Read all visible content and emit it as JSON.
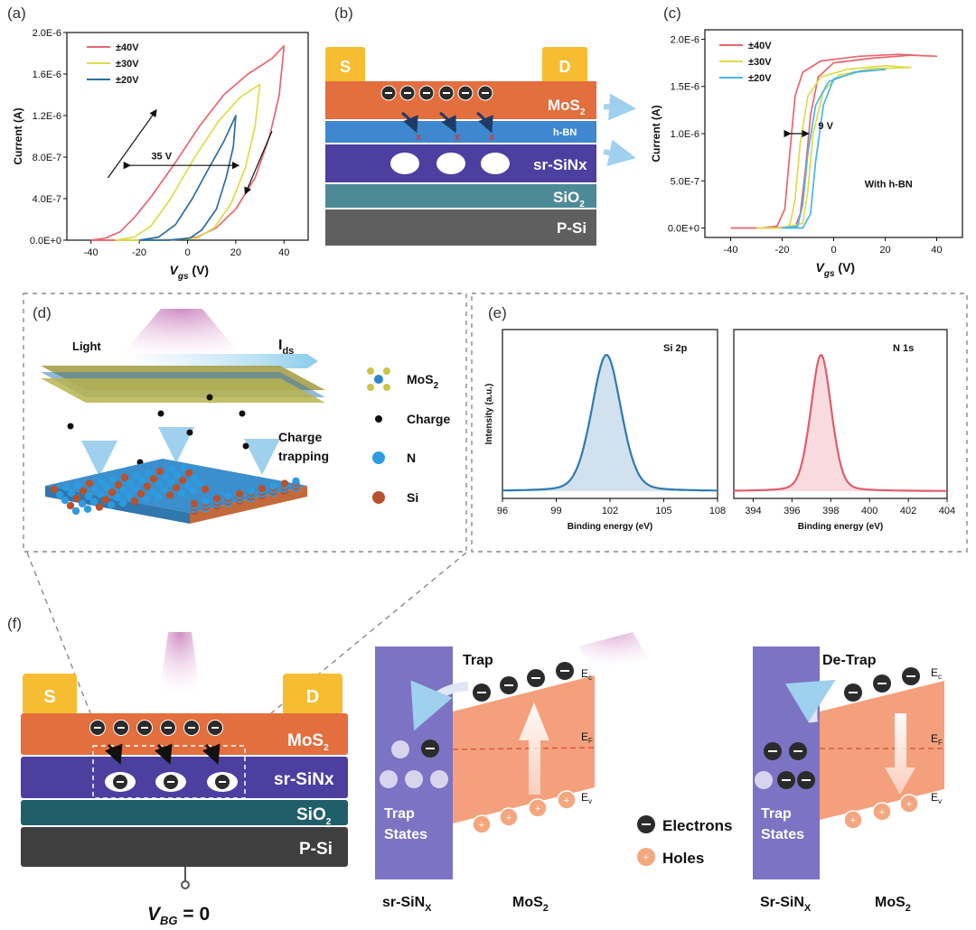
{
  "panels": {
    "a": "(a)",
    "b": "(b)",
    "c": "(c)",
    "d": "(d)",
    "e": "(e)",
    "f": "(f)"
  },
  "colors": {
    "red": "#e8666f",
    "yellow": "#dcdc4a",
    "blue": "#2a6f9e",
    "lightblue": "#49b4ea",
    "mos2": "#e36e3e",
    "hbn": "#3f88d0",
    "sinx": "#4d3fa0",
    "sio2": "#4d8a98",
    "psi": "#5f5f5f",
    "sio2_f": "#1f5f6a",
    "psi_f": "#3f3f3f",
    "contact": "#f6bd33",
    "gaussBlue": "#2f7ab0",
    "gaussRed": "#e05d6c"
  },
  "chart_data": [
    {
      "id": "a",
      "type": "line",
      "ylabel": "Current (A)",
      "xlabel_main": "V",
      "xlabel_sub": "gs",
      "xlabel_unit": " (V)",
      "xlim": [
        -50,
        50
      ],
      "ylim": [
        0,
        2e-06
      ],
      "xticks": [
        -40,
        -20,
        0,
        20,
        40
      ],
      "yticks": [
        0,
        4e-07,
        8e-07,
        1.2e-06,
        1.6e-06,
        2e-06
      ],
      "yticklabels": [
        "0.0E+0",
        "4.0E-7",
        "8.0E-7",
        "1.2E-6",
        "1.6E-6",
        "2.0E-6"
      ],
      "annotation": "35 V",
      "series": [
        {
          "name": "±40V",
          "color": "#e8666f",
          "points": [
            [
              -40,
              0
            ],
            [
              -34,
              2e-08
            ],
            [
              -28,
              8e-08
            ],
            [
              -22,
              2.2e-07
            ],
            [
              -15,
              4.2e-07
            ],
            [
              -5,
              7.5e-07
            ],
            [
              5,
              1.1e-06
            ],
            [
              15,
              1.4e-06
            ],
            [
              25,
              1.6e-06
            ],
            [
              35,
              1.75e-06
            ],
            [
              40,
              1.87e-06
            ],
            [
              38,
              1.4e-06
            ],
            [
              34,
              1e-06
            ],
            [
              28,
              6e-07
            ],
            [
              20,
              3e-07
            ],
            [
              12,
              1.2e-07
            ],
            [
              4,
              3e-08
            ],
            [
              -5,
              5e-09
            ],
            [
              -20,
              0
            ],
            [
              -40,
              0
            ]
          ]
        },
        {
          "name": "±30V",
          "color": "#dcdc4a",
          "points": [
            [
              -30,
              0
            ],
            [
              -22,
              3e-08
            ],
            [
              -15,
              1.4e-07
            ],
            [
              -7,
              4e-07
            ],
            [
              3,
              8e-07
            ],
            [
              13,
              1.15e-06
            ],
            [
              22,
              1.38e-06
            ],
            [
              30,
              1.5e-06
            ],
            [
              28,
              1.1e-06
            ],
            [
              24,
              7e-07
            ],
            [
              18,
              3.5e-07
            ],
            [
              11,
              1.2e-07
            ],
            [
              4,
              2e-08
            ],
            [
              -10,
              0
            ],
            [
              -30,
              0
            ]
          ]
        },
        {
          "name": "±20V",
          "color": "#2a6f9e",
          "points": [
            [
              -20,
              0
            ],
            [
              -12,
              3e-08
            ],
            [
              -5,
              1.5e-07
            ],
            [
              2,
              4e-07
            ],
            [
              9,
              7e-07
            ],
            [
              15,
              9.5e-07
            ],
            [
              20,
              1.2e-06
            ],
            [
              19,
              9e-07
            ],
            [
              16,
              6e-07
            ],
            [
              12,
              3e-07
            ],
            [
              6,
              1e-07
            ],
            [
              1,
              2e-08
            ],
            [
              -8,
              0
            ],
            [
              -20,
              0
            ]
          ]
        }
      ]
    },
    {
      "id": "c",
      "type": "line",
      "ylabel": "Current (A)",
      "xlabel_main": "V",
      "xlabel_sub": "gs",
      "xlabel_unit": " (V)",
      "xlim": [
        -50,
        50
      ],
      "ylim": [
        -1e-07,
        2.1e-06
      ],
      "xticks": [
        -40,
        -20,
        0,
        20,
        40
      ],
      "yticks": [
        0,
        5e-07,
        1e-06,
        1.5e-06,
        2e-06
      ],
      "yticklabels": [
        "0.0E+0",
        "5.0E-7",
        "1.0E-6",
        "1.5E-6",
        "2.0E-6"
      ],
      "annotation": "9 V",
      "note": "With h-BN",
      "series": [
        {
          "name": "±40V",
          "color": "#e8666f",
          "points": [
            [
              -40,
              0
            ],
            [
              -28,
              0
            ],
            [
              -22,
              2e-08
            ],
            [
              -19,
              2e-07
            ],
            [
              -17,
              8e-07
            ],
            [
              -15,
              1.4e-06
            ],
            [
              -12,
              1.65e-06
            ],
            [
              -5,
              1.77e-06
            ],
            [
              10,
              1.82e-06
            ],
            [
              25,
              1.84e-06
            ],
            [
              40,
              1.82e-06
            ],
            [
              30,
              1.83e-06
            ],
            [
              15,
              1.8e-06
            ],
            [
              0,
              1.75e-06
            ],
            [
              -6,
              1.6e-06
            ],
            [
              -9,
              1.2e-06
            ],
            [
              -11,
              6e-07
            ],
            [
              -13,
              1.5e-07
            ],
            [
              -15,
              1e-08
            ],
            [
              -25,
              0
            ],
            [
              -40,
              0
            ]
          ]
        },
        {
          "name": "±30V",
          "color": "#dcdc4a",
          "points": [
            [
              -30,
              0
            ],
            [
              -20,
              0
            ],
            [
              -17,
              3e-08
            ],
            [
              -15,
              3e-07
            ],
            [
              -13,
              9e-07
            ],
            [
              -10,
              1.4e-06
            ],
            [
              -5,
              1.6e-06
            ],
            [
              5,
              1.68e-06
            ],
            [
              20,
              1.72e-06
            ],
            [
              30,
              1.7e-06
            ],
            [
              15,
              1.69e-06
            ],
            [
              2,
              1.62e-06
            ],
            [
              -4,
              1.45e-06
            ],
            [
              -8,
              1e-06
            ],
            [
              -10,
              4e-07
            ],
            [
              -12,
              5e-08
            ],
            [
              -20,
              0
            ],
            [
              -30,
              0
            ]
          ]
        },
        {
          "name": "±20V",
          "color": "#49b4ea",
          "points": [
            [
              -20,
              0
            ],
            [
              -14,
              2e-08
            ],
            [
              -12,
              2.5e-07
            ],
            [
              -10,
              8e-07
            ],
            [
              -7,
              1.3e-06
            ],
            [
              -2,
              1.55e-06
            ],
            [
              8,
              1.65e-06
            ],
            [
              20,
              1.68e-06
            ],
            [
              10,
              1.66e-06
            ],
            [
              0,
              1.58e-06
            ],
            [
              -4,
              1.3e-06
            ],
            [
              -7,
              7e-07
            ],
            [
              -9,
              1.5e-07
            ],
            [
              -12,
              0
            ],
            [
              -20,
              0
            ]
          ]
        }
      ]
    },
    {
      "id": "e1",
      "type": "area",
      "ylabel": "Intensity (a.u.)",
      "xlabel": "Binding energy (eV)",
      "xlim": [
        96,
        108
      ],
      "xticks": [
        96,
        99,
        102,
        105,
        108
      ],
      "label": "Si 2p",
      "peak": 101.8,
      "width": 0.85,
      "color": "#2f7ab0"
    },
    {
      "id": "e2",
      "type": "area",
      "xlabel": "Binding energy (eV)",
      "xlim": [
        393,
        404
      ],
      "xticks": [
        394,
        396,
        398,
        400,
        402,
        404
      ],
      "label": "N 1s",
      "peak": 397.5,
      "width": 0.55,
      "color": "#e05d6c"
    }
  ],
  "panel_b": {
    "source": "S",
    "drain": "D",
    "mos2": "MoS",
    "mos2_sub": "2",
    "hbn": "h-BN",
    "sinx": "sr-SiNx",
    "sio2": "SiO",
    "sio2_sub": "2",
    "psi": "P-Si"
  },
  "panel_d": {
    "light": "Light",
    "ids_main": "I",
    "ids_sub": "ds",
    "trap_line1": "Charge",
    "trap_line2": "trapping",
    "legend_mos2": "MoS",
    "legend_mos2_sub": "2",
    "legend_charge": "Charge",
    "legend_n": "N",
    "legend_si": "Si"
  },
  "panel_f": {
    "source": "S",
    "drain": "D",
    "mos2": "MoS",
    "mos2_sub": "2",
    "sinx": "sr-SiNx",
    "sio2": "SiO",
    "sio2_sub": "2",
    "psi": "P-Si",
    "vbg_main": "V",
    "vbg_sub": "BG",
    "vbg_tail": " = 0",
    "trap_title": "Trap",
    "detrap_title": "De-Trap",
    "ec": "E",
    "ec_sub": "c",
    "ef": "E",
    "ef_sub": "F",
    "ev": "E",
    "ev_sub": "v",
    "trap_states_1": "Trap",
    "trap_states_2": "States",
    "left_bottom_main": "sr-SiN",
    "left_bottom_sub": "X",
    "right_bottom_main": "Sr-SiN",
    "right_bottom_sub": "X",
    "mos2_bottom": "MoS",
    "mos2_bottom_sub": "2",
    "legend_electrons": "Electrons",
    "legend_holes": "Holes"
  }
}
